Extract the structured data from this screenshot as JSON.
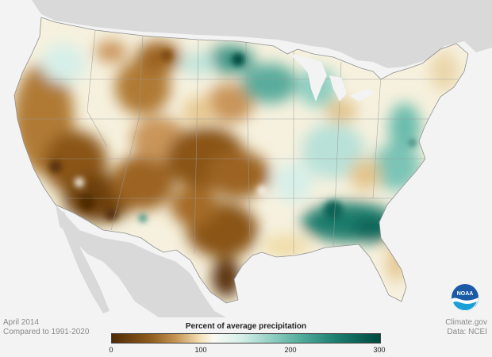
{
  "map": {
    "region": "contiguous-united-states",
    "color_scale": [
      "#4f2a06",
      "#8c5a1a",
      "#c79654",
      "#f3e2b8",
      "#fbfaf4",
      "#d7efe9",
      "#9bd3c8",
      "#54ad9d",
      "#1a7d6e",
      "#00493f"
    ],
    "land_background_color": "#d6d6d6",
    "water_background_color": "#f3f3f3",
    "state_boundary_color": "#9a9a9a"
  },
  "period": "April 2014",
  "comparison": "Compared to 1991-2020",
  "legend": {
    "title": "Percent of average precipitation",
    "ticks": [
      "0",
      "100",
      "200",
      "300"
    ],
    "range": [
      0,
      300
    ]
  },
  "credit": {
    "source": "Climate.gov",
    "data": "Data: NCEI"
  },
  "logo": {
    "text": "NOAA",
    "icon": "noaa-logo"
  }
}
